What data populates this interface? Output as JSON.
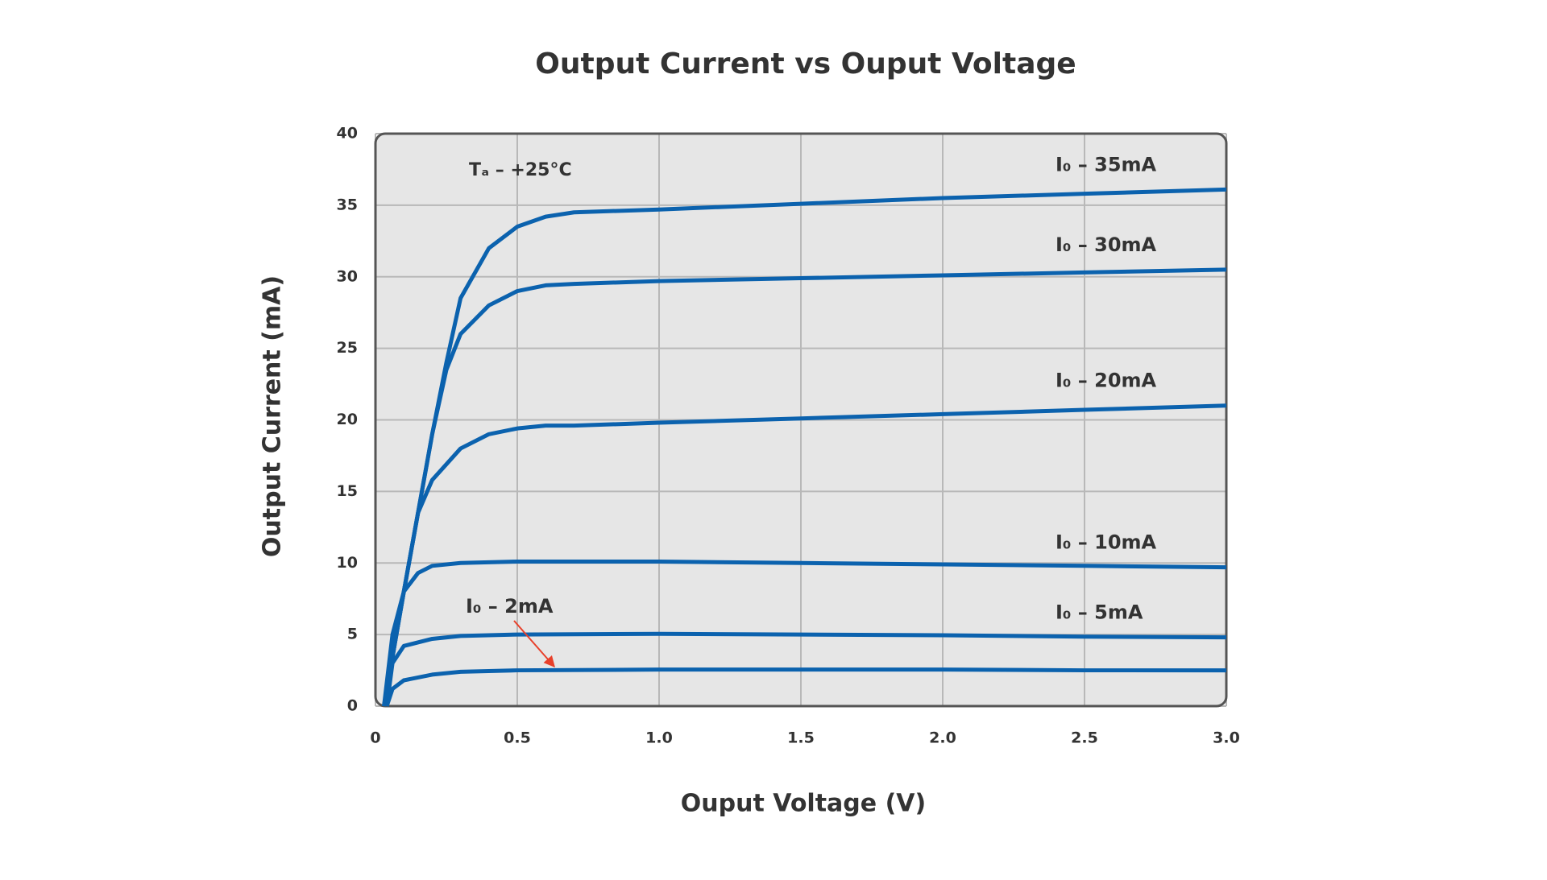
{
  "chart_data": {
    "type": "line",
    "title": "Output Current vs Ouput Voltage",
    "xlabel": "Ouput Voltage (V)",
    "ylabel": "Output Current (mA)",
    "annotation": "Tₐ – +25°C",
    "xlim": [
      0,
      3
    ],
    "ylim": [
      0,
      40
    ],
    "xticks": [
      0,
      0.5,
      {
        "value": 1,
        "label": "1.0"
      },
      1.5,
      {
        "value": 2,
        "label": "2.0"
      },
      2.5,
      {
        "value": 3,
        "label": "3.0"
      }
    ],
    "yticks": [
      0,
      5,
      10,
      15,
      20,
      25,
      30,
      35,
      40
    ],
    "grid": true,
    "series": [
      {
        "name": "I₀ – 35mA",
        "color": "#0b62ae",
        "x": [
          0.03,
          0.1,
          0.2,
          0.25,
          0.3,
          0.4,
          0.5,
          0.6,
          0.7,
          1.0,
          1.5,
          2.0,
          2.5,
          3.0
        ],
        "values": [
          0,
          8,
          19,
          24,
          28.5,
          32,
          33.5,
          34.2,
          34.5,
          34.7,
          35.1,
          35.5,
          35.8,
          36.1
        ]
      },
      {
        "name": "I₀ – 30mA",
        "color": "#0b62ae",
        "x": [
          0.03,
          0.1,
          0.2,
          0.25,
          0.3,
          0.4,
          0.5,
          0.6,
          0.7,
          1.0,
          1.5,
          2.0,
          2.5,
          3.0
        ],
        "values": [
          0,
          8,
          19,
          23.5,
          26,
          28,
          29,
          29.4,
          29.5,
          29.7,
          29.9,
          30.1,
          30.3,
          30.5
        ]
      },
      {
        "name": "I₀ – 20mA",
        "color": "#0b62ae",
        "x": [
          0.03,
          0.1,
          0.15,
          0.2,
          0.3,
          0.4,
          0.5,
          0.6,
          0.7,
          1.0,
          1.5,
          2.0,
          2.5,
          3.0
        ],
        "values": [
          0,
          8,
          13.5,
          15.8,
          18,
          19,
          19.4,
          19.6,
          19.6,
          19.8,
          20.1,
          20.4,
          20.7,
          21
        ]
      },
      {
        "name": "I₀ – 10mA",
        "color": "#0b62ae",
        "x": [
          0.03,
          0.06,
          0.1,
          0.15,
          0.2,
          0.3,
          0.5,
          0.7,
          1.0,
          1.5,
          2.0,
          2.5,
          3.0
        ],
        "values": [
          0,
          5,
          8,
          9.3,
          9.8,
          10,
          10.1,
          10.1,
          10.1,
          10,
          9.9,
          9.8,
          9.7
        ]
      },
      {
        "name": "I₀ – 5mA",
        "color": "#0b62ae",
        "x": [
          0.04,
          0.06,
          0.1,
          0.2,
          0.3,
          0.5,
          1.0,
          1.5,
          2.0,
          2.5,
          3.0
        ],
        "values": [
          0,
          3,
          4.2,
          4.7,
          4.9,
          5,
          5.05,
          5,
          4.95,
          4.85,
          4.8
        ]
      },
      {
        "name": "I₀ – 2mA",
        "color": "#0b62ae",
        "x": [
          0.04,
          0.06,
          0.1,
          0.2,
          0.3,
          0.5,
          1.0,
          1.5,
          2.0,
          2.5,
          3.0
        ],
        "values": [
          0,
          1.2,
          1.8,
          2.2,
          2.4,
          2.5,
          2.55,
          2.55,
          2.55,
          2.5,
          2.5
        ]
      }
    ]
  }
}
